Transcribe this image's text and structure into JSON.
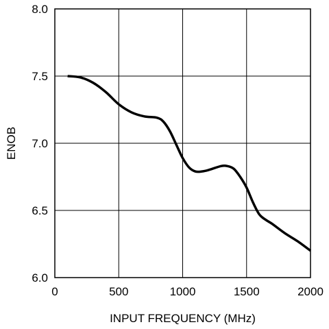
{
  "chart_data": {
    "type": "line",
    "title": "",
    "xlabel": "INPUT FREQUENCY (MHz)",
    "ylabel": "ENOB",
    "xlim": [
      0,
      2000
    ],
    "ylim": [
      6.0,
      8.0
    ],
    "x_ticks": [
      "0",
      "500",
      "1000",
      "1500",
      "2000"
    ],
    "y_ticks": [
      "8.0",
      "7.5",
      "7.0",
      "6.5",
      "6.0"
    ],
    "grid": true,
    "legend": "none",
    "colors": {
      "line": "#000000",
      "grid": "#000000",
      "background": "#ffffff"
    },
    "series": [
      {
        "x": [
          100,
          200,
          300,
          400,
          500,
          600,
          700,
          800,
          850,
          900,
          950,
          1000,
          1050,
          1100,
          1150,
          1200,
          1300,
          1350,
          1400,
          1450,
          1500,
          1550,
          1600,
          1650,
          1700,
          1800,
          1900,
          2000
        ],
        "y": [
          7.5,
          7.49,
          7.45,
          7.38,
          7.29,
          7.23,
          7.2,
          7.19,
          7.16,
          7.09,
          6.99,
          6.89,
          6.82,
          6.79,
          6.79,
          6.8,
          6.83,
          6.83,
          6.81,
          6.75,
          6.67,
          6.56,
          6.47,
          6.43,
          6.4,
          6.33,
          6.27,
          6.2
        ]
      }
    ]
  }
}
